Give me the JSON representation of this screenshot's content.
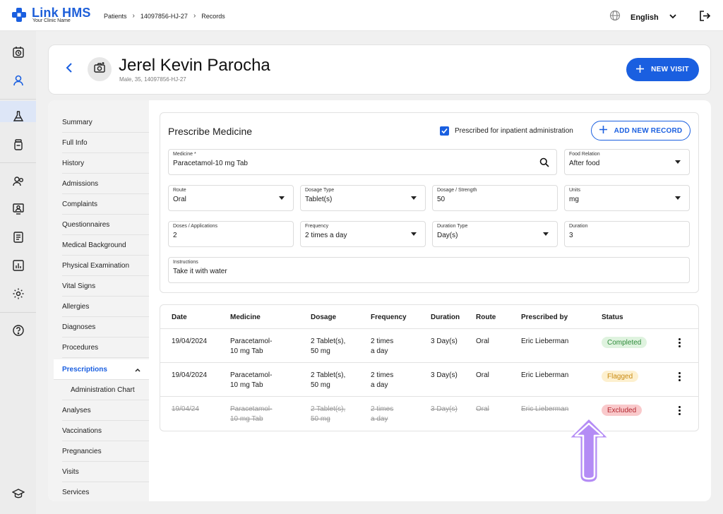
{
  "app": {
    "name": "Link HMS",
    "clinic": "Your Clinic Name"
  },
  "breadcrumb": [
    "Patients",
    "14097856-HJ-27",
    "Records"
  ],
  "language": "English",
  "patient": {
    "name": "Jerel Kevin Parocha",
    "meta": "Male, 35, 14097856-HJ-27"
  },
  "actions": {
    "new_visit": "NEW VISIT",
    "add_record": "ADD NEW RECORD"
  },
  "sidebar": {
    "items": [
      {
        "label": "Summary"
      },
      {
        "label": "Full Info"
      },
      {
        "label": "History"
      },
      {
        "label": "Admissions"
      },
      {
        "label": "Complaints"
      },
      {
        "label": "Questionnaires"
      },
      {
        "label": "Medical Background"
      },
      {
        "label": "Physical Examination"
      },
      {
        "label": "Vital Signs"
      },
      {
        "label": "Allergies"
      },
      {
        "label": "Diagnoses"
      },
      {
        "label": "Procedures"
      },
      {
        "label": "Prescriptions"
      },
      {
        "label": "Administration Chart"
      },
      {
        "label": "Analyses"
      },
      {
        "label": "Vaccinations"
      },
      {
        "label": "Pregnancies"
      },
      {
        "label": "Visits"
      },
      {
        "label": "Services"
      }
    ]
  },
  "form": {
    "title": "Prescribe Medicine",
    "inpatient_checkbox": {
      "label": "Prescribed for inpatient administration",
      "checked": true
    },
    "fields": {
      "medicine": {
        "label": "Medicine *",
        "value": "Paracetamol-10 mg Tab"
      },
      "food_relation": {
        "label": "Food Relation",
        "value": "After food"
      },
      "route": {
        "label": "Route",
        "value": "Oral"
      },
      "dosage_type": {
        "label": "Dosage Type",
        "value": "Tablet(s)"
      },
      "dosage_strength": {
        "label": "Dosage / Strength",
        "value": "50"
      },
      "units": {
        "label": "Units",
        "value": "mg"
      },
      "doses": {
        "label": "Doses / Applications",
        "value": "2"
      },
      "frequency": {
        "label": "Frequency",
        "value": "2 times a day"
      },
      "duration_type": {
        "label": "Duration Type",
        "value": "Day(s)"
      },
      "duration": {
        "label": "Duration",
        "value": "3"
      },
      "instructions": {
        "label": "Instructions",
        "value": "Take it with water"
      }
    }
  },
  "table": {
    "headers": {
      "date": "Date",
      "medicine": "Medicine",
      "dosage": "Dosage",
      "frequency": "Frequency",
      "duration": "Duration",
      "route": "Route",
      "prescribed_by": "Prescribed by",
      "status": "Status"
    },
    "rows": [
      {
        "date": "19/04/2024",
        "medicine1": "Paracetamol-",
        "medicine2": "10 mg Tab",
        "dosage1": "2 Tablet(s),",
        "dosage2": "50 mg",
        "freq1": "2 times",
        "freq2": "a day",
        "duration": "3 Day(s)",
        "route": "Oral",
        "prescribed_by": "Eric Lieberman",
        "status": "Completed"
      },
      {
        "date": "19/04/2024",
        "medicine1": "Paracetamol-",
        "medicine2": "10 mg Tab",
        "dosage1": "2 Tablet(s),",
        "dosage2": "50 mg",
        "freq1": "2 times",
        "freq2": "a day",
        "duration": "3 Day(s)",
        "route": "Oral",
        "prescribed_by": "Eric Lieberman",
        "status": "Flagged"
      },
      {
        "date": "19/04/24",
        "medicine1": "Paracetamol-",
        "medicine2": "10 mg Tab",
        "dosage1": "2 Tablet(s),",
        "dosage2": "50 mg",
        "freq1": "2 times",
        "freq2": "a day",
        "duration": "3 Day(s)",
        "route": "Oral",
        "prescribed_by": "Eric Lieberman",
        "status": "Excluded"
      }
    ]
  },
  "colors": {
    "accent": "#1a5fe0",
    "completed_bg": "#dff3df",
    "completed_fg": "#2e8b3a",
    "flagged_bg": "#fdf0cf",
    "flagged_fg": "#c98a12",
    "excluded_bg": "#f9c9cb",
    "excluded_fg": "#b3262e",
    "arrow": "#b48cf5"
  }
}
